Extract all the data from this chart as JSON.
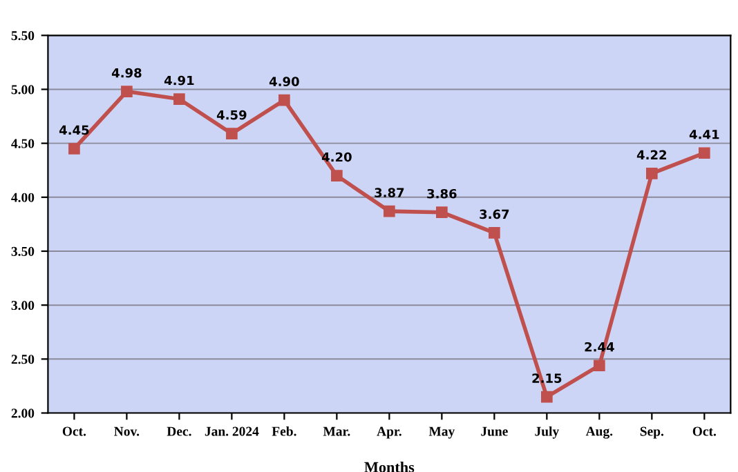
{
  "chart_data": {
    "type": "line",
    "xlabel": "Months",
    "categories": [
      "Oct.",
      "Nov.",
      "Dec.",
      "Jan. 2024",
      "Feb.",
      "Mar.",
      "Apr.",
      "May",
      "June",
      "July",
      "Aug.",
      "Sep.",
      "Oct."
    ],
    "series": [
      {
        "color": "#c0504d",
        "values": [
          4.45,
          4.98,
          4.91,
          4.59,
          4.9,
          4.2,
          3.87,
          3.86,
          3.67,
          2.15,
          2.44,
          4.22,
          4.41
        ],
        "value_labels": [
          "4.45",
          "4.98",
          "4.91",
          "4.59",
          "4.90",
          "4.20",
          "3.87",
          "3.86",
          "3.67",
          "2.15",
          "2.44",
          "4.22",
          "4.41"
        ]
      }
    ],
    "ylim": [
      2.0,
      5.5
    ],
    "yticks": [
      {
        "value": 2.0,
        "label": "2.00"
      },
      {
        "value": 2.5,
        "label": "2.50"
      },
      {
        "value": 3.0,
        "label": "3.00"
      },
      {
        "value": 3.5,
        "label": "3.50"
      },
      {
        "value": 4.0,
        "label": "4.00"
      },
      {
        "value": 4.5,
        "label": "4.50"
      },
      {
        "value": 5.0,
        "label": "5.00"
      },
      {
        "value": 5.5,
        "label": "5.50"
      }
    ],
    "grid": "y",
    "marker": "square",
    "line_style": "solid"
  }
}
